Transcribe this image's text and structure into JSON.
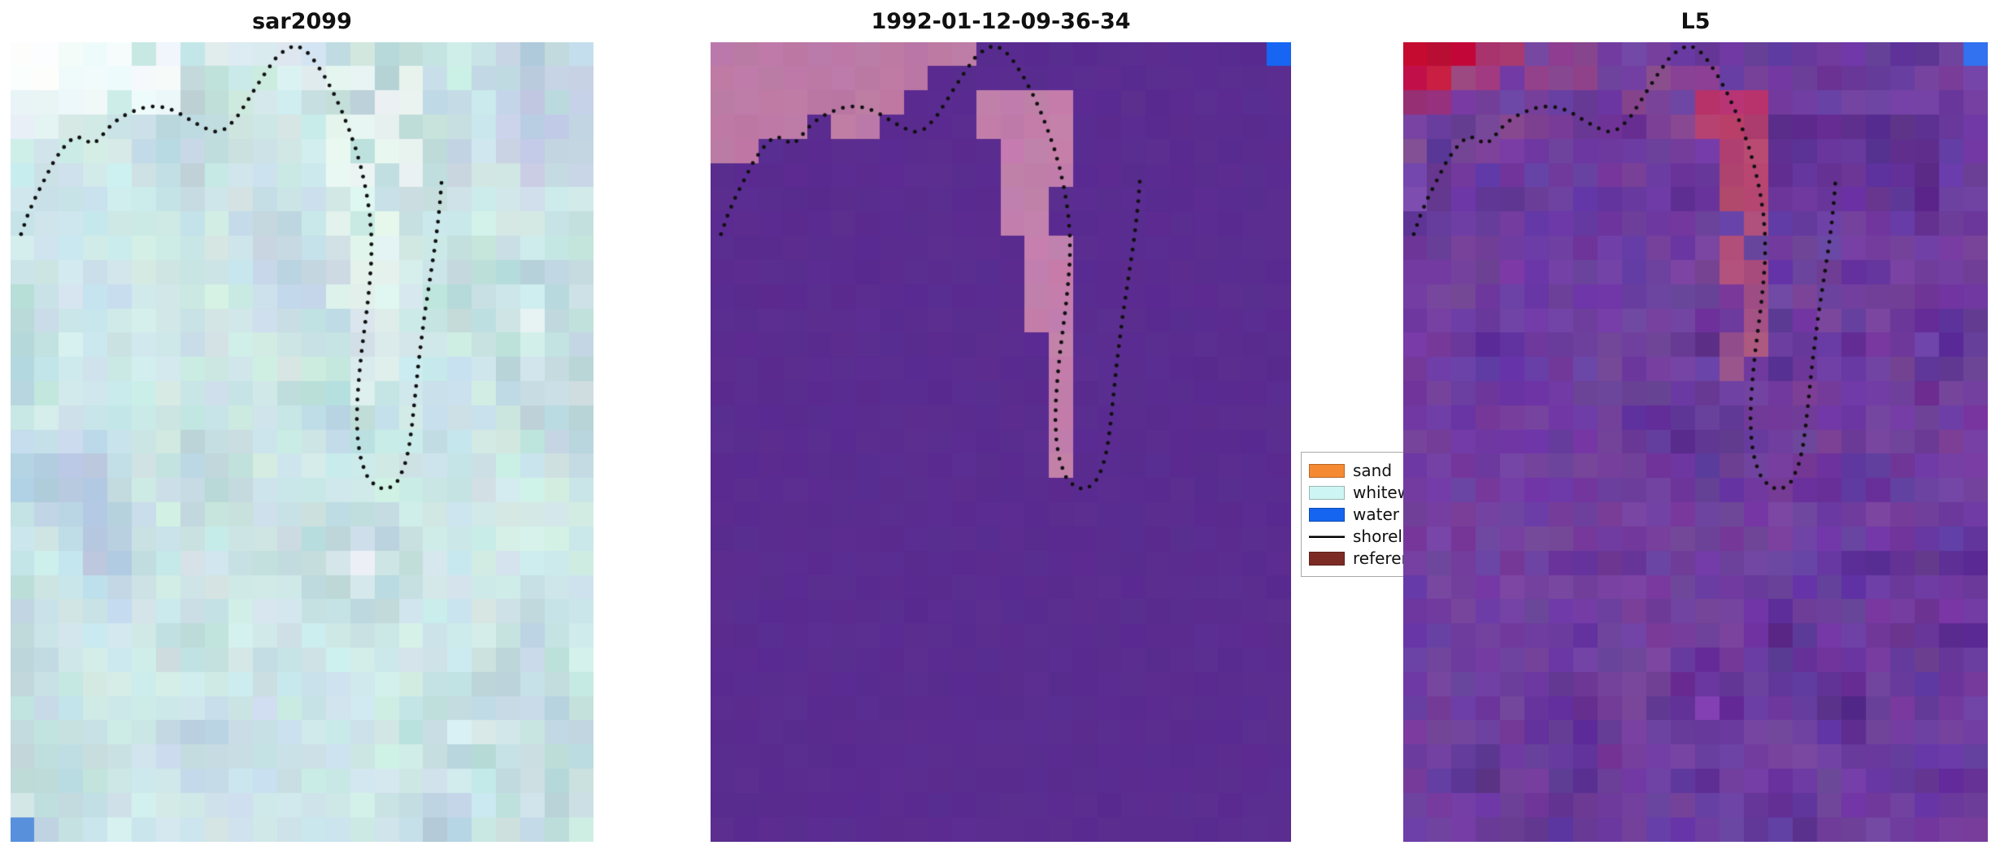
{
  "chart_data": {
    "type": "image",
    "title": "",
    "panels": [
      {
        "title": "sar2099",
        "kind": "sar-false-color-image",
        "render": {
          "seed": 11,
          "cols": 24,
          "rows": 33,
          "freq": 3.5,
          "jitter": 7,
          "palette": [
            "#a8bdd8",
            "#c6dde8",
            "#d2ecea",
            "#b9d6da",
            "#e9f3f7"
          ],
          "regions": [
            {
              "c": 0,
              "r": 0,
              "w": 2,
              "h": 2,
              "color": "#ffffff",
              "j": 4,
              "mix": 0.95
            },
            {
              "c": 2,
              "r": 0,
              "w": 5,
              "h": 3,
              "color": "#f8fcff",
              "j": 6,
              "p": 0.8,
              "mix": 0.85
            },
            {
              "c": 0,
              "r": 2,
              "w": 3,
              "h": 2,
              "color": "#eef6fa",
              "j": 6,
              "p": 0.7,
              "mix": 0.7
            },
            {
              "c": 7,
              "r": 0,
              "w": 6,
              "h": 2,
              "color": "#e9f3f9",
              "j": 6,
              "p": 0.5,
              "mix": 0.6
            },
            {
              "c": 13,
              "r": 1,
              "w": 4,
              "h": 5,
              "color": "#f2fbf6",
              "j": 5,
              "p": 0.85,
              "mix": 0.8
            },
            {
              "c": 13,
              "r": 6,
              "w": 3,
              "h": 5,
              "color": "#ecf9f2",
              "j": 6,
              "p": 0.8,
              "mix": 0.75
            },
            {
              "c": 14,
              "r": 11,
              "w": 2,
              "h": 4,
              "color": "#e6f5ee",
              "j": 6,
              "p": 0.6,
              "mix": 0.6
            },
            {
              "c": 18,
              "r": 1,
              "w": 6,
              "h": 5,
              "color": "#c6c6e6",
              "j": 8,
              "p": 0.5,
              "mix": 0.5
            },
            {
              "c": 0,
              "r": 32,
              "w": 1,
              "h": 1,
              "color": "#5b8ce0",
              "j": 4,
              "mix": 1
            }
          ]
        }
      },
      {
        "title": "1992-01-12-09-36-34",
        "kind": "classification-map",
        "render": {
          "seed": 22,
          "cols": 24,
          "rows": 33,
          "flat": "#5a2c90",
          "jitter": 2,
          "regions": [
            {
              "c": 0,
              "r": 0,
              "w": 11,
              "h": 1,
              "color": "#bd7aa6",
              "j": 4
            },
            {
              "c": 0,
              "r": 1,
              "w": 9,
              "h": 1,
              "color": "#bd7aa6",
              "j": 4
            },
            {
              "c": 0,
              "r": 2,
              "w": 8,
              "h": 1,
              "color": "#bd7aa6",
              "j": 4
            },
            {
              "c": 0,
              "r": 3,
              "w": 4,
              "h": 1,
              "color": "#bd7aa6",
              "j": 4
            },
            {
              "c": 0,
              "r": 4,
              "w": 2,
              "h": 1,
              "color": "#bd7aa6",
              "j": 4
            },
            {
              "c": 5,
              "r": 3,
              "w": 2,
              "h": 1,
              "color": "#bd7aa6",
              "j": 4
            },
            {
              "c": 11,
              "r": 2,
              "w": 4,
              "h": 2,
              "color": "#c27fab",
              "j": 4
            },
            {
              "c": 12,
              "r": 4,
              "w": 3,
              "h": 2,
              "color": "#c27fab",
              "j": 4
            },
            {
              "c": 12,
              "r": 6,
              "w": 2,
              "h": 2,
              "color": "#c27fab",
              "j": 4
            },
            {
              "c": 13,
              "r": 8,
              "w": 2,
              "h": 2,
              "color": "#c27fab",
              "j": 4
            },
            {
              "c": 13,
              "r": 10,
              "w": 2,
              "h": 2,
              "color": "#c27fab",
              "j": 4
            },
            {
              "c": 14,
              "r": 12,
              "w": 1,
              "h": 6,
              "color": "#c27fab",
              "j": 4
            },
            {
              "c": 23,
              "r": 0,
              "w": 1,
              "h": 1,
              "color": "#1565f2",
              "j": 3
            }
          ]
        }
      },
      {
        "title": "L5",
        "kind": "landsat5-image",
        "render": {
          "seed": 77,
          "cols": 24,
          "rows": 33,
          "freq": 3,
          "jitter": 9,
          "palette": [
            "#532a86",
            "#6b3ba2",
            "#75419e",
            "#5d3093",
            "#7b49ac"
          ],
          "regions": [
            {
              "c": 0,
              "r": 0,
              "w": 3,
              "h": 1,
              "color": "#c00d38",
              "j": 8
            },
            {
              "c": 0,
              "r": 1,
              "w": 2,
              "h": 1,
              "color": "#c11744",
              "j": 8
            },
            {
              "c": 3,
              "r": 0,
              "w": 2,
              "h": 1,
              "color": "#b23168",
              "j": 10,
              "mix": 0.85
            },
            {
              "c": 2,
              "r": 1,
              "w": 2,
              "h": 1,
              "color": "#b04578",
              "j": 10,
              "mix": 0.8
            },
            {
              "c": 0,
              "r": 2,
              "w": 2,
              "h": 1,
              "color": "#a63372",
              "j": 10,
              "mix": 0.8
            },
            {
              "c": 5,
              "r": 0,
              "w": 3,
              "h": 2,
              "color": "#a04a88",
              "j": 12,
              "p": 0.7,
              "mix": 0.65
            },
            {
              "c": 0,
              "r": 3,
              "w": 7,
              "h": 2,
              "color": "#8f4a92",
              "j": 12,
              "p": 0.5,
              "mix": 0.55
            },
            {
              "c": 7,
              "r": 2,
              "w": 5,
              "h": 2,
              "color": "#97478c",
              "j": 12,
              "p": 0.45,
              "mix": 0.55
            },
            {
              "c": 10,
              "r": 1,
              "w": 3,
              "h": 2,
              "color": "#a34f85",
              "j": 12,
              "p": 0.5,
              "mix": 0.6
            },
            {
              "c": 12,
              "r": 2,
              "w": 3,
              "h": 2,
              "color": "#c23a60",
              "j": 10,
              "p": 0.85,
              "mix": 0.8
            },
            {
              "c": 13,
              "r": 4,
              "w": 2,
              "h": 3,
              "color": "#c84565",
              "j": 10,
              "p": 0.85,
              "mix": 0.8
            },
            {
              "c": 13,
              "r": 7,
              "w": 2,
              "h": 3,
              "color": "#c05070",
              "j": 10,
              "p": 0.8,
              "mix": 0.75
            },
            {
              "c": 14,
              "r": 10,
              "w": 1,
              "h": 3,
              "color": "#b85578",
              "j": 10,
              "p": 0.8,
              "mix": 0.7
            },
            {
              "c": 13,
              "r": 12,
              "w": 2,
              "h": 2,
              "color": "#b06080",
              "j": 12,
              "p": 0.55,
              "mix": 0.55
            },
            {
              "c": 23,
              "r": 0,
              "w": 1,
              "h": 1,
              "color": "#2f6ff0",
              "j": 4
            }
          ]
        }
      }
    ],
    "legend": {
      "entries": [
        {
          "label": "sand",
          "color": "#f58a33",
          "type": "patch"
        },
        {
          "label": "whitewater",
          "color": "#cdf5f3",
          "type": "patch"
        },
        {
          "label": "water",
          "color": "#1565f0",
          "type": "patch"
        },
        {
          "label": "shoreline",
          "color": "#000000",
          "type": "line"
        },
        {
          "label": "reference",
          "color": "#7c2b24",
          "type": "patch"
        }
      ]
    },
    "shoreline": {
      "style": "dotted",
      "color": "#101010",
      "points": [
        [
          0.018,
          0.24
        ],
        [
          0.03,
          0.215
        ],
        [
          0.044,
          0.192
        ],
        [
          0.058,
          0.172
        ],
        [
          0.072,
          0.152
        ],
        [
          0.086,
          0.136
        ],
        [
          0.1,
          0.124
        ],
        [
          0.113,
          0.118
        ],
        [
          0.126,
          0.121
        ],
        [
          0.139,
          0.127
        ],
        [
          0.152,
          0.122
        ],
        [
          0.164,
          0.11
        ],
        [
          0.178,
          0.1
        ],
        [
          0.194,
          0.092
        ],
        [
          0.212,
          0.086
        ],
        [
          0.232,
          0.081
        ],
        [
          0.252,
          0.08
        ],
        [
          0.272,
          0.083
        ],
        [
          0.292,
          0.09
        ],
        [
          0.312,
          0.099
        ],
        [
          0.332,
          0.107
        ],
        [
          0.352,
          0.112
        ],
        [
          0.37,
          0.108
        ],
        [
          0.388,
          0.094
        ],
        [
          0.405,
          0.075
        ],
        [
          0.422,
          0.055
        ],
        [
          0.44,
          0.035
        ],
        [
          0.457,
          0.018
        ],
        [
          0.474,
          0.008
        ],
        [
          0.49,
          0.004
        ],
        [
          0.506,
          0.01
        ],
        [
          0.522,
          0.024
        ],
        [
          0.538,
          0.042
        ],
        [
          0.553,
          0.062
        ],
        [
          0.567,
          0.084
        ],
        [
          0.58,
          0.108
        ],
        [
          0.592,
          0.133
        ],
        [
          0.602,
          0.159
        ],
        [
          0.61,
          0.186
        ],
        [
          0.616,
          0.214
        ],
        [
          0.619,
          0.243
        ],
        [
          0.619,
          0.272
        ],
        [
          0.616,
          0.301
        ],
        [
          0.612,
          0.33
        ],
        [
          0.607,
          0.359
        ],
        [
          0.602,
          0.388
        ],
        [
          0.598,
          0.417
        ],
        [
          0.595,
          0.446
        ],
        [
          0.594,
          0.474
        ],
        [
          0.596,
          0.501
        ],
        [
          0.602,
          0.525
        ],
        [
          0.613,
          0.545
        ],
        [
          0.629,
          0.557
        ],
        [
          0.647,
          0.559
        ],
        [
          0.663,
          0.55
        ],
        [
          0.675,
          0.532
        ],
        [
          0.683,
          0.509
        ],
        [
          0.688,
          0.483
        ],
        [
          0.692,
          0.456
        ],
        [
          0.696,
          0.428
        ],
        [
          0.7,
          0.4
        ],
        [
          0.705,
          0.371
        ],
        [
          0.71,
          0.342
        ],
        [
          0.716,
          0.313
        ],
        [
          0.722,
          0.284
        ],
        [
          0.728,
          0.255
        ],
        [
          0.733,
          0.226
        ],
        [
          0.737,
          0.197
        ],
        [
          0.74,
          0.168
        ]
      ]
    }
  }
}
